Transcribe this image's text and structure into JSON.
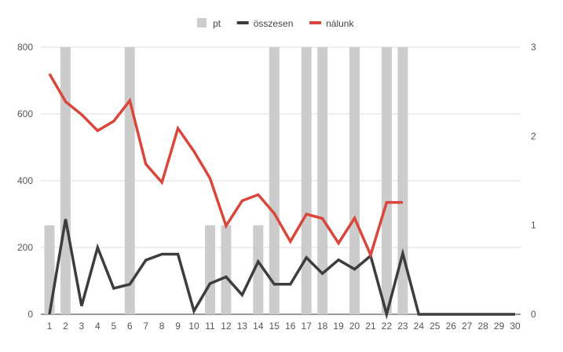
{
  "chart_data": {
    "type": "bar+line",
    "title": "",
    "xlabel": "",
    "ylabel": "",
    "legend_position": "top",
    "grid": true,
    "x": [
      1,
      2,
      3,
      4,
      5,
      6,
      7,
      8,
      9,
      10,
      11,
      12,
      13,
      14,
      15,
      16,
      17,
      18,
      19,
      20,
      21,
      22,
      23,
      24,
      25,
      26,
      27,
      28,
      29,
      30
    ],
    "y_left": {
      "min": 0,
      "max": 800,
      "ticks": [
        0,
        200,
        400,
        600,
        800
      ]
    },
    "y_right": {
      "min": 0,
      "max": 3,
      "ticks": [
        0,
        1,
        2,
        3
      ]
    },
    "series": [
      {
        "name": "pt",
        "type": "bar",
        "axis": "right",
        "color": "#cccccc",
        "values": [
          1,
          3,
          0,
          0,
          0,
          3,
          0,
          0,
          0,
          0,
          1,
          1,
          0,
          1,
          3,
          0,
          3,
          3,
          0,
          3,
          0,
          3,
          3,
          0,
          0,
          0,
          0,
          0,
          0,
          0
        ]
      },
      {
        "name": "összesen",
        "type": "line",
        "axis": "left",
        "color": "#3d3d3d",
        "values": [
          0,
          285,
          25,
          200,
          78,
          90,
          162,
          180,
          180,
          10,
          92,
          112,
          58,
          158,
          90,
          90,
          170,
          122,
          163,
          135,
          175,
          0,
          182,
          0,
          0,
          0,
          0,
          0,
          0,
          0
        ]
      },
      {
        "name": "nálunk",
        "type": "line",
        "axis": "left",
        "color": "#d9463c",
        "values": [
          720,
          637,
          598,
          550,
          578,
          640,
          450,
          395,
          557,
          488,
          407,
          265,
          340,
          358,
          302,
          218,
          300,
          287,
          213,
          288,
          178,
          335,
          335,
          null,
          null,
          null,
          null,
          null,
          null,
          null
        ]
      }
    ]
  }
}
